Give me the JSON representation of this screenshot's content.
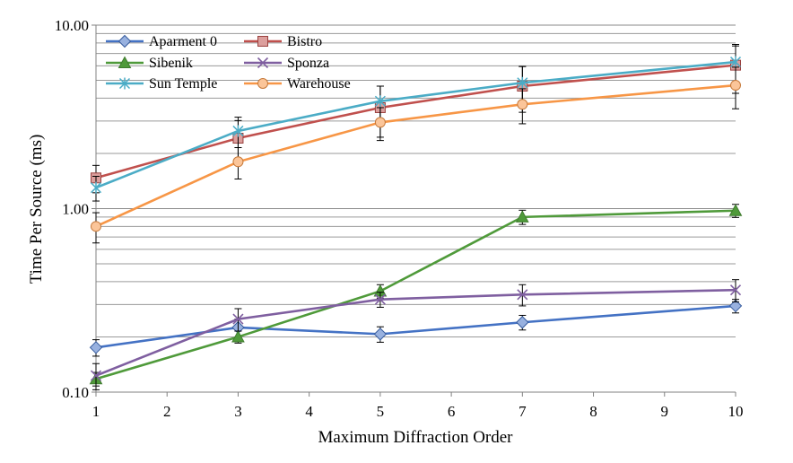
{
  "chart_data": {
    "type": "line",
    "xlabel": "Maximum Diffraction Order",
    "ylabel": "Time Per Source (ms)",
    "x_scale": "linear",
    "y_scale": "log",
    "xlim": [
      1,
      10
    ],
    "ylim": [
      0.1,
      10
    ],
    "x_ticks": [
      "1",
      "2",
      "3",
      "4",
      "5",
      "6",
      "7",
      "8",
      "9",
      "10"
    ],
    "y_ticks": [
      "0.10",
      "1.00",
      "10.00"
    ],
    "grid": "horizontal-minor",
    "legend_position": "top-left",
    "x": [
      1,
      3,
      5,
      7,
      10
    ],
    "series": [
      {
        "name": "Aparment 0",
        "color": "#4472C4",
        "marker": "diamond",
        "values": [
          0.175,
          0.225,
          0.207,
          0.24,
          0.295
        ],
        "err": [
          0.018,
          0.025,
          0.02,
          0.022,
          0.025
        ]
      },
      {
        "name": "Bistro",
        "color": "#C0504D",
        "marker": "square",
        "values": [
          1.47,
          2.42,
          3.55,
          4.65,
          6.05
        ],
        "err": [
          0.25,
          0.6,
          1.1,
          1.3,
          1.8
        ]
      },
      {
        "name": "Sibenik",
        "color": "#4F9A3A",
        "marker": "triangle",
        "values": [
          0.118,
          0.2,
          0.355,
          0.9,
          0.975
        ],
        "err": [
          0.01,
          0.015,
          0.03,
          0.08,
          0.08
        ]
      },
      {
        "name": "Sponza",
        "color": "#7F5FA0",
        "marker": "x",
        "values": [
          0.123,
          0.25,
          0.32,
          0.34,
          0.36
        ],
        "err": [
          0.02,
          0.035,
          0.03,
          0.045,
          0.05
        ]
      },
      {
        "name": "Sun Temple",
        "color": "#4BACC6",
        "marker": "star",
        "values": [
          1.3,
          2.65,
          3.85,
          4.85,
          6.3
        ],
        "err": [
          0.2,
          0.5,
          0.8,
          1.1,
          1.4
        ]
      },
      {
        "name": "Warehouse",
        "color": "#F79646",
        "marker": "circle",
        "values": [
          0.8,
          1.8,
          2.95,
          3.7,
          4.7
        ],
        "err": [
          0.15,
          0.35,
          0.6,
          0.8,
          1.2
        ]
      }
    ]
  }
}
